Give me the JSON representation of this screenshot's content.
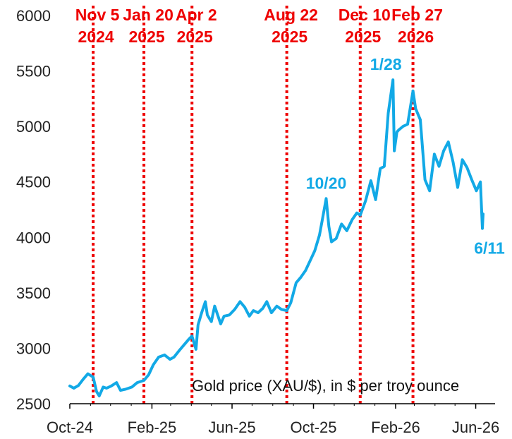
{
  "chart_data": {
    "type": "line",
    "title": "",
    "xlabel": "",
    "ylabel": "",
    "note": "Gold price (XAU/$), in $ per troy ounce",
    "ylim": [
      2500,
      6000
    ],
    "yticks": [
      2500,
      3000,
      3500,
      4000,
      4500,
      5000,
      5500,
      6000
    ],
    "xlim": [
      "2024-10-01",
      "2026-06-30"
    ],
    "xticks": [
      {
        "label": "Oct-24",
        "date": "2024-10-01"
      },
      {
        "label": "Feb-25",
        "date": "2025-02-01"
      },
      {
        "label": "Jun-25",
        "date": "2025-06-01"
      },
      {
        "label": "Oct-25",
        "date": "2025-10-01"
      },
      {
        "label": "Feb-26",
        "date": "2026-02-01"
      },
      {
        "label": "Jun-26",
        "date": "2026-06-01"
      }
    ],
    "events": [
      {
        "date": "2024-11-05",
        "line1": "Nov 5",
        "line2": "2024"
      },
      {
        "date": "2025-01-20",
        "line1": "Jan 20",
        "line2": "2025"
      },
      {
        "date": "2025-04-02",
        "line1": "Apr 2",
        "line2": "2025"
      },
      {
        "date": "2025-08-22",
        "line1": "Aug 22",
        "line2": "2025"
      },
      {
        "date": "2025-12-10",
        "line1": "Dec 10",
        "line2": "2025"
      },
      {
        "date": "2026-02-27",
        "line1": "Feb 27",
        "line2": "2026"
      }
    ],
    "annotations": [
      {
        "text": "10/20",
        "date": "2025-10-20",
        "value": 4350
      },
      {
        "text": "1/28",
        "date": "2026-01-28",
        "value": 5420
      },
      {
        "text": "6/11",
        "date": "2026-06-11",
        "value": 4080
      }
    ],
    "series": [
      {
        "color": "#12a9e6",
        "x": [
          "2024-10-01",
          "2024-10-07",
          "2024-10-14",
          "2024-10-21",
          "2024-10-28",
          "2024-11-05",
          "2024-11-10",
          "2024-11-14",
          "2024-11-20",
          "2024-11-25",
          "2024-12-02",
          "2024-12-10",
          "2024-12-16",
          "2024-12-23",
          "2025-01-02",
          "2025-01-10",
          "2025-01-20",
          "2025-01-27",
          "2025-02-03",
          "2025-02-11",
          "2025-02-20",
          "2025-02-28",
          "2025-03-06",
          "2025-03-14",
          "2025-03-21",
          "2025-03-28",
          "2025-04-02",
          "2025-04-08",
          "2025-04-11",
          "2025-04-17",
          "2025-04-22",
          "2025-04-25",
          "2025-05-01",
          "2025-05-06",
          "2025-05-15",
          "2025-05-20",
          "2025-05-28",
          "2025-06-05",
          "2025-06-13",
          "2025-06-20",
          "2025-06-27",
          "2025-07-03",
          "2025-07-10",
          "2025-07-17",
          "2025-07-23",
          "2025-07-30",
          "2025-08-07",
          "2025-08-14",
          "2025-08-22",
          "2025-08-28",
          "2025-09-05",
          "2025-09-12",
          "2025-09-19",
          "2025-09-26",
          "2025-10-03",
          "2025-10-10",
          "2025-10-14",
          "2025-10-20",
          "2025-10-24",
          "2025-10-28",
          "2025-11-04",
          "2025-11-12",
          "2025-11-20",
          "2025-11-28",
          "2025-12-05",
          "2025-12-10",
          "2025-12-18",
          "2025-12-26",
          "2026-01-02",
          "2026-01-09",
          "2026-01-15",
          "2026-01-21",
          "2026-01-28",
          "2026-01-30",
          "2026-02-03",
          "2026-02-06",
          "2026-02-12",
          "2026-02-19",
          "2026-02-27",
          "2026-03-03",
          "2026-03-10",
          "2026-03-17",
          "2026-03-24",
          "2026-03-31",
          "2026-04-07",
          "2026-04-14",
          "2026-04-21",
          "2026-04-28",
          "2026-05-05",
          "2026-05-12",
          "2026-05-19",
          "2026-05-26",
          "2026-06-02",
          "2026-06-08",
          "2026-06-11",
          "2026-06-12"
        ],
        "values": [
          2660,
          2640,
          2665,
          2720,
          2770,
          2740,
          2610,
          2570,
          2650,
          2640,
          2660,
          2690,
          2620,
          2630,
          2650,
          2690,
          2710,
          2760,
          2850,
          2920,
          2940,
          2900,
          2920,
          2980,
          3030,
          3080,
          3110,
          2990,
          3210,
          3330,
          3420,
          3300,
          3240,
          3380,
          3220,
          3290,
          3300,
          3350,
          3420,
          3370,
          3290,
          3340,
          3320,
          3360,
          3420,
          3320,
          3380,
          3350,
          3340,
          3410,
          3590,
          3640,
          3700,
          3790,
          3880,
          4020,
          4150,
          4350,
          4100,
          3960,
          3990,
          4120,
          4060,
          4160,
          4220,
          4200,
          4330,
          4510,
          4340,
          4620,
          4640,
          5120,
          5420,
          4780,
          4950,
          4970,
          5000,
          5020,
          5320,
          5160,
          5060,
          4520,
          4420,
          4750,
          4640,
          4780,
          4860,
          4680,
          4450,
          4700,
          4630,
          4520,
          4420,
          4500,
          4080,
          4210
        ]
      }
    ]
  }
}
